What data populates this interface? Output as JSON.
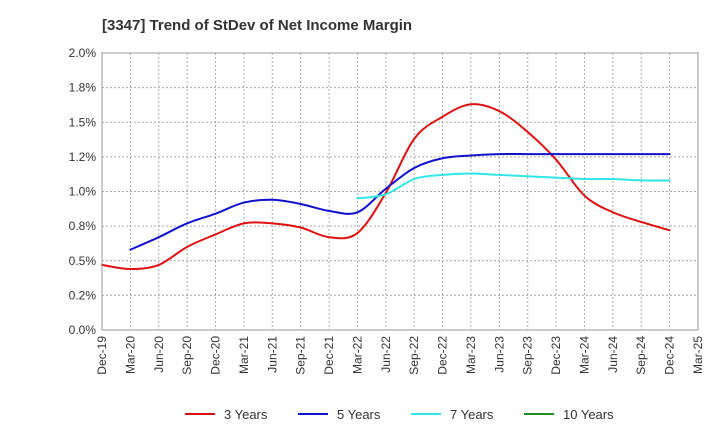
{
  "chart_data": {
    "type": "line",
    "title": "[3347]  Trend of StDev of Net Income Margin",
    "xlabel": "",
    "ylabel": "",
    "ylim": [
      0,
      2.0
    ],
    "y_ticks": [
      "0.0%",
      "0.2%",
      "0.5%",
      "0.8%",
      "1.0%",
      "1.2%",
      "1.5%",
      "1.8%",
      "2.0%"
    ],
    "y_tick_values": [
      0,
      0.25,
      0.5,
      0.75,
      1.0,
      1.25,
      1.5,
      1.75,
      2.0
    ],
    "categories": [
      "Dec-19",
      "Mar-20",
      "Jun-20",
      "Sep-20",
      "Dec-20",
      "Mar-21",
      "Jun-21",
      "Sep-21",
      "Dec-21",
      "Mar-22",
      "Jun-22",
      "Sep-22",
      "Dec-22",
      "Mar-23",
      "Jun-23",
      "Sep-23",
      "Dec-23",
      "Mar-24",
      "Jun-24",
      "Sep-24",
      "Dec-24",
      "Mar-25"
    ],
    "grid": true,
    "legend_position": "bottom",
    "series": [
      {
        "name": "3 Years",
        "color": "#dd1111",
        "values": [
          0.47,
          0.44,
          0.47,
          0.6,
          0.69,
          0.77,
          0.77,
          0.74,
          0.67,
          0.7,
          0.99,
          1.38,
          1.54,
          1.63,
          1.58,
          1.43,
          1.23,
          0.97,
          0.85,
          0.78,
          0.72,
          null
        ]
      },
      {
        "name": "5 Years",
        "color": "#1111cc",
        "values": [
          null,
          0.58,
          0.67,
          0.77,
          0.84,
          0.92,
          0.94,
          0.91,
          0.86,
          0.85,
          1.02,
          1.17,
          1.24,
          1.26,
          1.27,
          1.27,
          1.27,
          1.27,
          1.27,
          1.27,
          1.27,
          null
        ]
      },
      {
        "name": "7 Years",
        "color": "#33e6e6",
        "values": [
          null,
          null,
          null,
          null,
          null,
          null,
          null,
          null,
          null,
          0.95,
          0.98,
          1.09,
          1.12,
          1.13,
          1.12,
          1.11,
          1.1,
          1.09,
          1.09,
          1.08,
          1.08,
          null
        ]
      },
      {
        "name": "10 Years",
        "color": "#228b22",
        "values": [
          null,
          null,
          null,
          null,
          null,
          null,
          null,
          null,
          null,
          null,
          null,
          null,
          null,
          null,
          null,
          null,
          null,
          null,
          null,
          null,
          null,
          null
        ]
      }
    ]
  }
}
